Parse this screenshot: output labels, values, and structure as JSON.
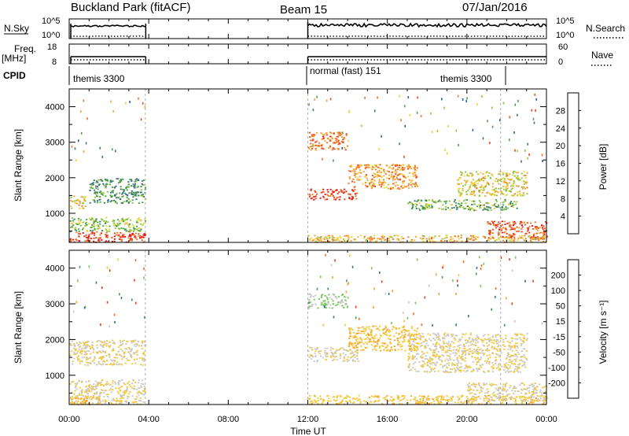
{
  "header": {
    "title": "Buckland Park (fitACF)",
    "beam": "Beam 15",
    "date": "07/Jan/2016"
  },
  "left_labels": {
    "nsky": "N.Sky",
    "freq": "Freq.",
    "freq_unit": "[MHz]",
    "cpid": "CPID"
  },
  "right_labels": {
    "nsearch": "N.Search",
    "nave": "Nave"
  },
  "scales": {
    "nsky_top": "10^5",
    "nsky_bottom": "10^0",
    "nsearch_top": "10^5",
    "nsearch_bottom": "10^0",
    "freq_top": "18",
    "freq_bottom": "8",
    "nave_top": "60",
    "nave_bottom": "0"
  },
  "cpid_labels": {
    "segment1": "themis 3300",
    "segment2": "normal (fast) 151",
    "segment3": "themis 3300"
  },
  "axes": {
    "xlabel": "Time UT",
    "ylabel": "Slant Range [km]",
    "xticks": [
      "00:00",
      "04:00",
      "08:00",
      "12:00",
      "16:00",
      "20:00",
      "00:00"
    ],
    "yticks": [
      "1000",
      "2000",
      "3000",
      "4000"
    ],
    "ylim": [
      180,
      4500
    ]
  },
  "colorbars": {
    "power": {
      "label": "Power [dB]",
      "ticks": [
        "4",
        "8",
        "12",
        "16",
        "20",
        "24",
        "28"
      ],
      "colors": [
        "#1414e6",
        "#2c5aa8",
        "#3c7a64",
        "#49a34a",
        "#8ec83c",
        "#f0d23c",
        "#f5a532",
        "#f07828",
        "#eb4b1e",
        "#e61414"
      ]
    },
    "velocity": {
      "label": "Velocity [m s⁻¹]",
      "ticks": [
        "200",
        "100",
        "50",
        "15",
        "-15",
        "-50",
        "-100",
        "-200"
      ],
      "colors": [
        "#1e28c8",
        "#2e6ea0",
        "#3c9a5a",
        "#72c850",
        "#c8c8c8",
        "#f5c83c",
        "#f5a028",
        "#f06e1e",
        "#eb3c14",
        "#e61414"
      ]
    }
  },
  "chart_data": [
    {
      "type": "heatmap",
      "title": "Power",
      "quantity": "Power [dB]",
      "x_range": [
        "00:00",
        "24:00"
      ],
      "y_range_km": [
        180,
        4500
      ],
      "data_gaps": [
        [
          "03:50",
          "12:00"
        ]
      ],
      "regions": [
        {
          "t": [
            0.0,
            3.8
          ],
          "r": [
            200,
            500
          ],
          "v": 28
        },
        {
          "t": [
            0.0,
            3.8
          ],
          "r": [
            500,
            900
          ],
          "v": 14
        },
        {
          "t": [
            0.0,
            0.8
          ],
          "r": [
            1150,
            1500
          ],
          "v": 18
        },
        {
          "t": [
            1.0,
            3.8
          ],
          "r": [
            1300,
            2000
          ],
          "v": 10
        },
        {
          "t": [
            12.0,
            14.5
          ],
          "r": [
            1400,
            1700
          ],
          "v": 28
        },
        {
          "t": [
            12.0,
            14.0
          ],
          "r": [
            2800,
            3300
          ],
          "v": 24
        },
        {
          "t": [
            14.0,
            17.5
          ],
          "r": [
            1700,
            2400
          ],
          "v": 22
        },
        {
          "t": [
            17.0,
            22.5
          ],
          "r": [
            1100,
            1400
          ],
          "v": 12
        },
        {
          "t": [
            19.5,
            23.0
          ],
          "r": [
            1500,
            2200
          ],
          "v": 18
        },
        {
          "t": [
            21.0,
            24.0
          ],
          "r": [
            300,
            800
          ],
          "v": 26
        },
        {
          "t": [
            12.0,
            24.0
          ],
          "r": [
            200,
            400
          ],
          "v": 20
        }
      ]
    },
    {
      "type": "heatmap",
      "title": "Velocity",
      "quantity": "Velocity [m s-1]",
      "x_range": [
        "00:00",
        "24:00"
      ],
      "y_range_km": [
        180,
        4500
      ],
      "data_gaps": [
        [
          "03:50",
          "12:00"
        ]
      ],
      "regions": [
        {
          "t": [
            0.0,
            3.8
          ],
          "r": [
            200,
            900
          ],
          "v": 0
        },
        {
          "t": [
            0.0,
            3.8
          ],
          "r": [
            1300,
            2000
          ],
          "v": -5
        },
        {
          "t": [
            0.0,
            1.5
          ],
          "r": [
            200,
            400
          ],
          "v": -50
        },
        {
          "t": [
            12.0,
            14.5
          ],
          "r": [
            1400,
            1800
          ],
          "v": 5
        },
        {
          "t": [
            12.0,
            14.0
          ],
          "r": [
            2900,
            3300
          ],
          "v": 60
        },
        {
          "t": [
            14.0,
            17.5
          ],
          "r": [
            1700,
            2400
          ],
          "v": -40
        },
        {
          "t": [
            17.0,
            23.0
          ],
          "r": [
            1100,
            2200
          ],
          "v": 0
        },
        {
          "t": [
            12.0,
            24.0
          ],
          "r": [
            200,
            450
          ],
          "v": -30
        },
        {
          "t": [
            20.0,
            24.0
          ],
          "r": [
            300,
            800
          ],
          "v": 0
        }
      ]
    },
    {
      "type": "line",
      "title": "N.Sky",
      "x": [
        "00:00",
        "03:50",
        "12:00",
        "24:00"
      ],
      "values": [
        7000,
        7000,
        30000,
        25000
      ]
    },
    {
      "type": "line",
      "title": "Freq.",
      "x": [
        "00:00",
        "03:50",
        "12:00",
        "24:00"
      ],
      "values": [
        12,
        12,
        12,
        12
      ]
    }
  ]
}
